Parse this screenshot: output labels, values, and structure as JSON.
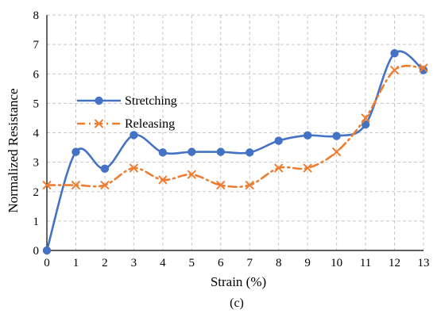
{
  "chart_data": {
    "type": "line",
    "xlabel": "Strain (%)",
    "ylabel": "Normalized Resistance",
    "caption": "(c)",
    "xlim": [
      0,
      13
    ],
    "ylim": [
      0,
      8
    ],
    "x": [
      0,
      1,
      2,
      3,
      4,
      5,
      6,
      7,
      8,
      9,
      10,
      11,
      12,
      13
    ],
    "xticks": [
      "0",
      "1",
      "2",
      "3",
      "4",
      "5",
      "6",
      "7",
      "8",
      "9",
      "10",
      "11",
      "12",
      "13"
    ],
    "yticks": [
      "0",
      "1",
      "2",
      "3",
      "4",
      "5",
      "6",
      "7",
      "8"
    ],
    "grid": true,
    "legend_position": "center-left",
    "series": [
      {
        "name": "Stretching",
        "color": "#4472C4",
        "marker": "circle",
        "line_style": "solid",
        "values": [
          0,
          3.35,
          2.78,
          3.92,
          3.33,
          3.35,
          3.35,
          3.33,
          3.73,
          3.91,
          3.89,
          4.28,
          6.7,
          6.13
        ]
      },
      {
        "name": "Releasing",
        "color": "#ED7D31",
        "marker": "x",
        "line_style": "dash-dot",
        "values": [
          2.22,
          2.22,
          2.22,
          2.8,
          2.4,
          2.58,
          2.22,
          2.22,
          2.8,
          2.8,
          3.35,
          4.5,
          6.13,
          6.2
        ]
      }
    ]
  }
}
